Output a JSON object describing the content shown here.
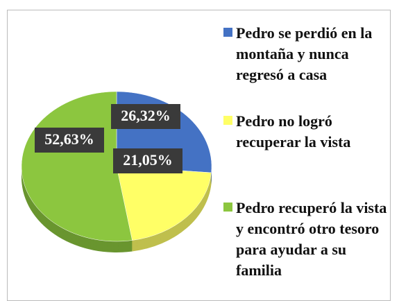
{
  "chart_data": {
    "type": "pie",
    "categories": [
      "Pedro se perdió en la montaña y nunca regresó a casa",
      "Pedro no logró recuperar la vista",
      "Pedro recuperó la vista y encontró otro tesoro para ayudar a su familia"
    ],
    "values": [
      26.32,
      21.05,
      52.63
    ],
    "value_labels": [
      "26,32%",
      "21,05%",
      "52,63%"
    ],
    "colors": [
      "#4472c4",
      "#ffff66",
      "#8cc63f"
    ],
    "legend": "right"
  }
}
